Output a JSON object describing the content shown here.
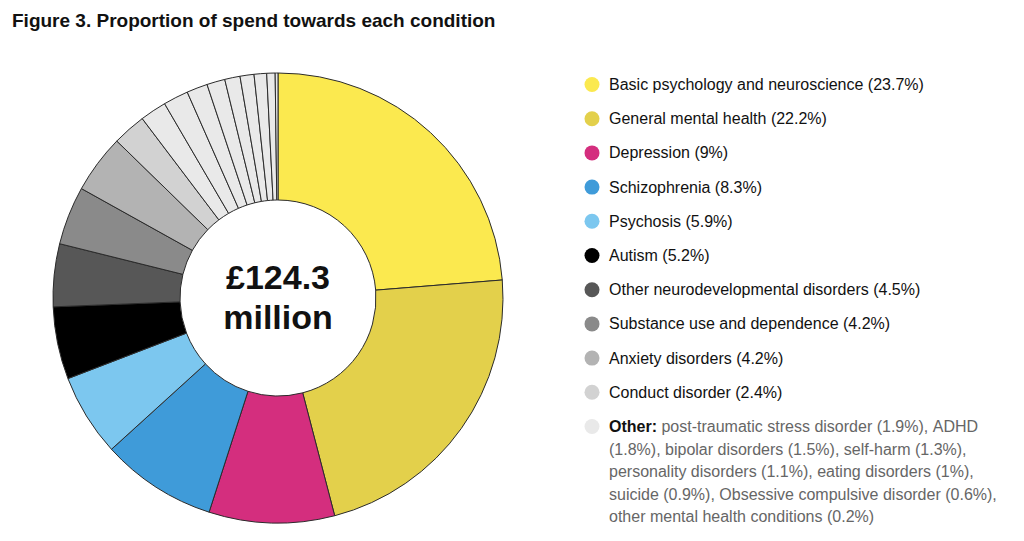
{
  "chart_data": {
    "type": "donut",
    "title": "Figure 3. Proportion of spend towards each condition",
    "annotations": [
      "£124.3",
      "million"
    ],
    "other_label": "Other:",
    "legend": "right",
    "categories": [
      "Basic psychology and neuroscience",
      "General mental health",
      "Depression",
      "Schizophrenia",
      "Psychosis",
      "Autism",
      "Other neurodevelopmental disorders",
      "Substance use and dependence",
      "Anxiety disorders",
      "Conduct disorder",
      "post-traumatic stress disorder",
      "ADHD",
      "bipolar disorders",
      "self-harm",
      "personality disorders",
      "eating disorders",
      "suicide",
      "Obsessive compulsive disorder",
      "other mental health conditions"
    ],
    "values": [
      23.7,
      22.2,
      9,
      8.3,
      5.9,
      5.2,
      4.5,
      4.2,
      4.2,
      2.4,
      1.9,
      1.8,
      1.5,
      1.3,
      1.1,
      1,
      0.9,
      0.6,
      0.2
    ],
    "value_labels": [
      "(23.7%)",
      "(22.2%)",
      "(9%)",
      "(8.3%)",
      "(5.9%)",
      "(5.2%)",
      "(4.5%)",
      "(4.2%)",
      "(4.2%)",
      "(2.4%)",
      "(1.9%),",
      "(1.8%),",
      "(1.5%),",
      "(1.3%),",
      "(1.1%),",
      "(1%),",
      "(0.9%),",
      "(0.6%),",
      "(0.2%)"
    ],
    "colors": [
      "#fbe94f",
      "#e3d04b",
      "#d42e7e",
      "#3f9bd9",
      "#7cc7ef",
      "#000000",
      "#575757",
      "#8a8a8a",
      "#b3b3b3",
      "#d2d2d2",
      "#e9e9e9",
      "#e9e9e9",
      "#e9e9e9",
      "#e9e9e9",
      "#e9e9e9",
      "#e9e9e9",
      "#e9e9e9",
      "#e9e9e9",
      "#e9e9e9"
    ]
  }
}
